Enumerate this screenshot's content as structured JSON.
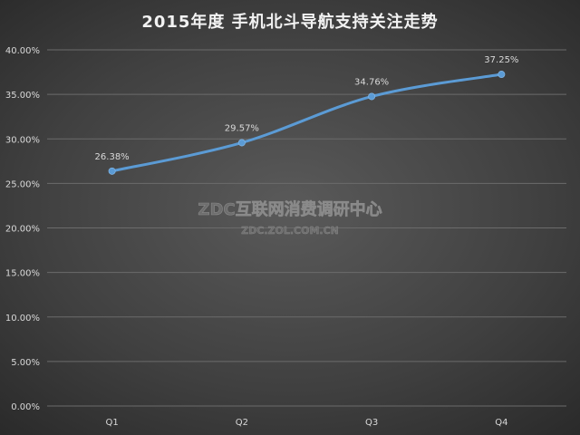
{
  "chart_data": {
    "type": "line",
    "title": "2015年度 手机北斗导航支持关注走势",
    "categories": [
      "Q1",
      "Q2",
      "Q3",
      "Q4"
    ],
    "series": [
      {
        "values": [
          26.38,
          29.57,
          34.76,
          37.25
        ],
        "labels": [
          "26.38%",
          "29.57%",
          "34.76%",
          "37.25%"
        ],
        "color": "#5b9bd5"
      }
    ],
    "ylim": [
      0,
      40
    ],
    "yticks": [
      "0.00%",
      "5.00%",
      "10.00%",
      "15.00%",
      "20.00%",
      "25.00%",
      "30.00%",
      "35.00%",
      "40.00%"
    ],
    "grid": true,
    "smooth": true,
    "xlabel": "",
    "ylabel": ""
  },
  "watermark": {
    "line1": "ZDC互联网消费调研中心",
    "line2": "ZDC.ZOL.COM.CN"
  },
  "colors": {
    "text": "#d9d9d9",
    "gridline": "#6b6b6b",
    "line": "#5b9bd5"
  }
}
